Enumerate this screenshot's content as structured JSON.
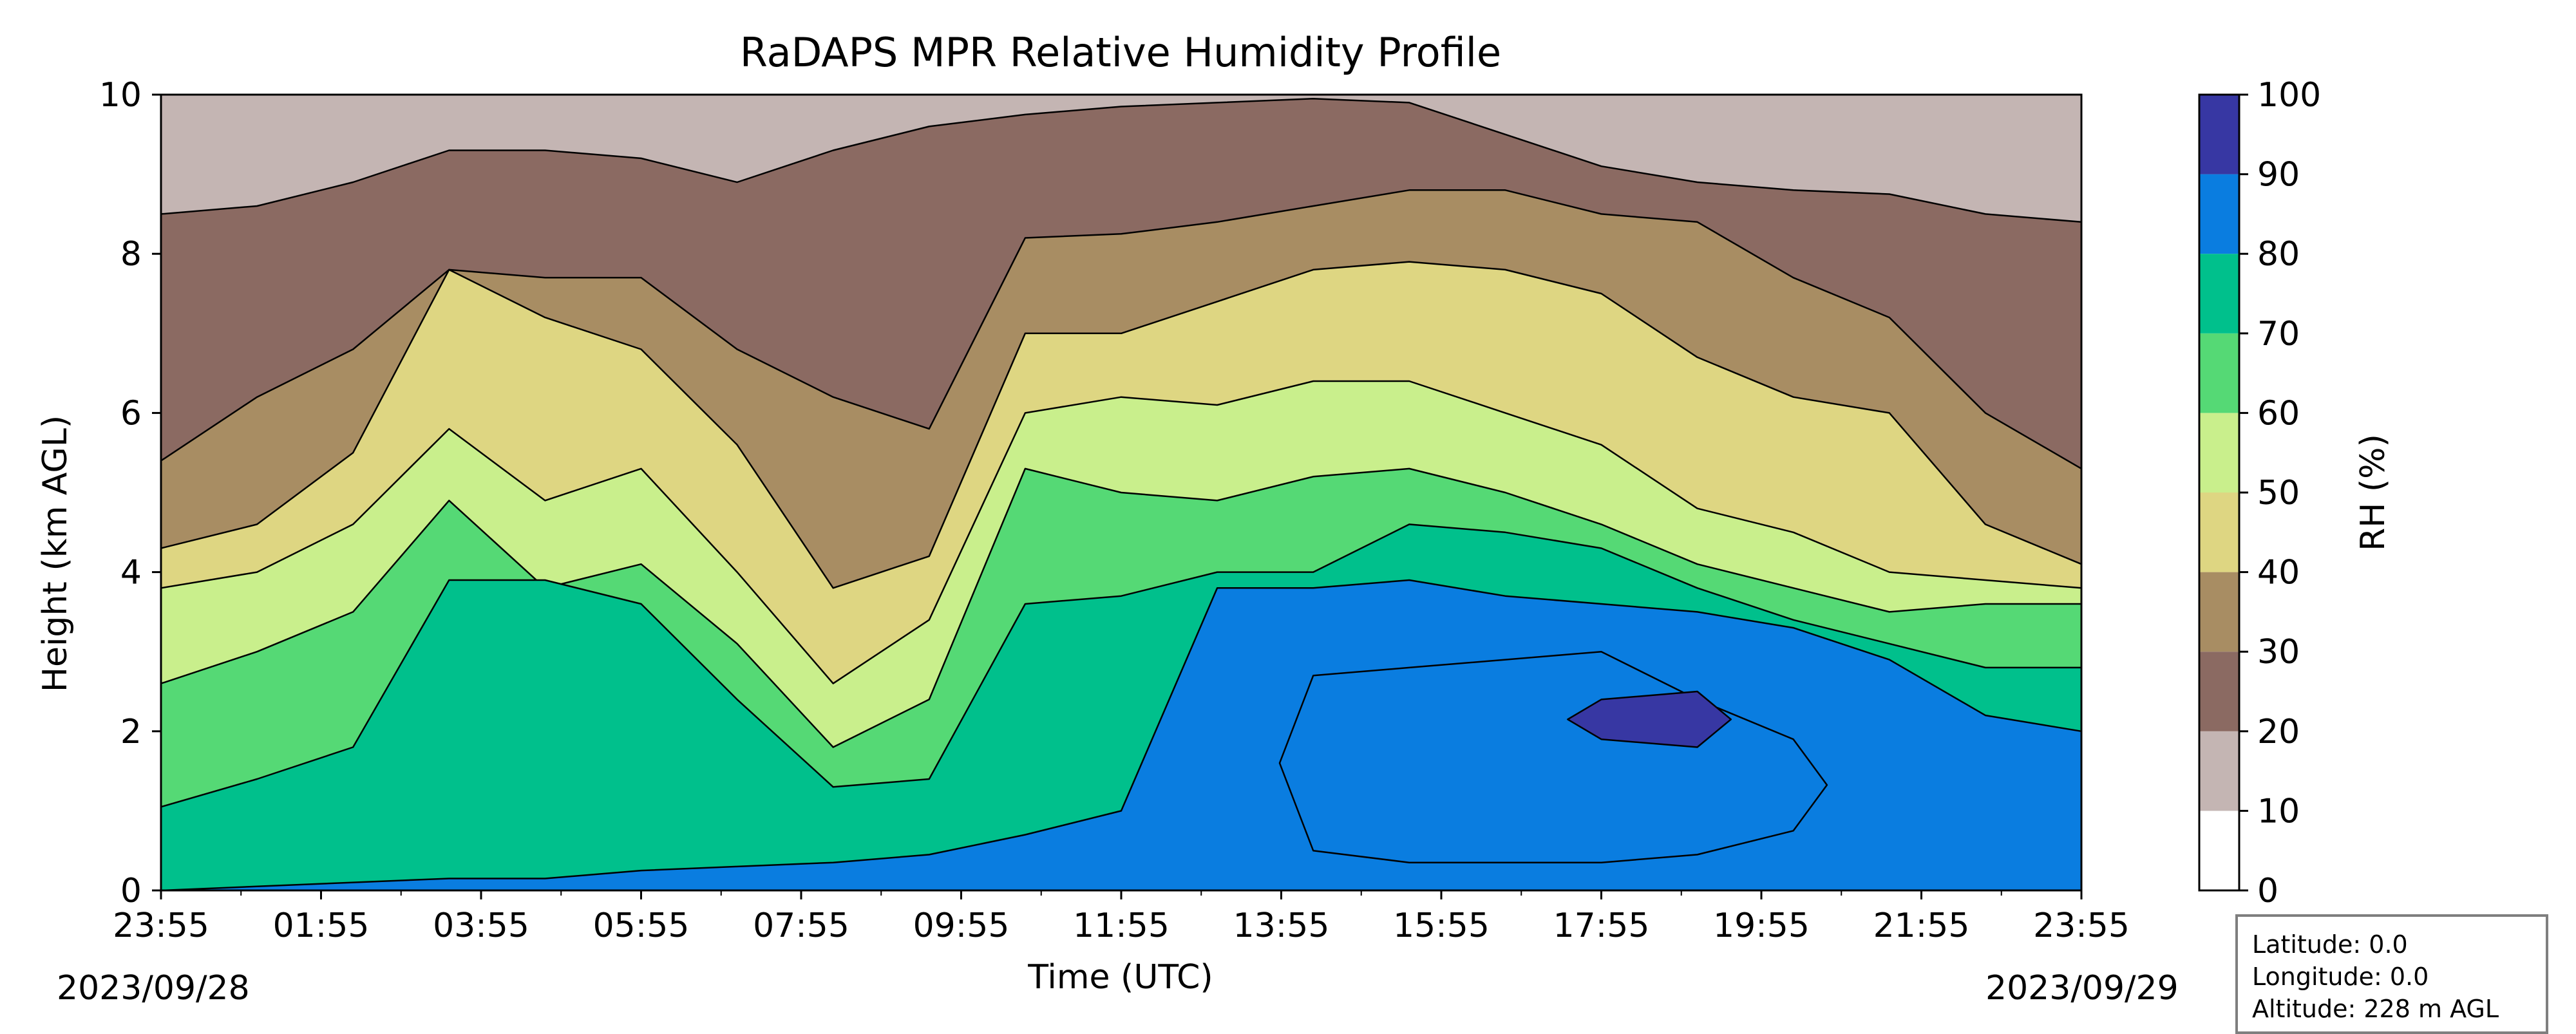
{
  "chart_data": {
    "type": "filled-contour",
    "title": "RaDAPS MPR Relative Humidity Profile",
    "xlabel": "Time (UTC)",
    "ylabel": "Height (km AGL)",
    "ylim": [
      0,
      10
    ],
    "x_tick_labels": [
      "23:55",
      "01:55",
      "03:55",
      "05:55",
      "07:55",
      "09:55",
      "11:55",
      "13:55",
      "15:55",
      "17:55",
      "19:55",
      "21:55",
      "23:55"
    ],
    "y_ticks": [
      0,
      2,
      4,
      6,
      8,
      10
    ],
    "start_date": "2023/09/28",
    "end_date": "2023/09/29",
    "colorbar": {
      "label": "RH (%)",
      "levels": [
        0,
        10,
        20,
        30,
        40,
        50,
        60,
        70,
        80,
        90,
        100
      ],
      "colors": [
        "#ffffff",
        "#c4b5b3",
        "#8b6a62",
        "#a88d63",
        "#ded682",
        "#c9ef8c",
        "#55d975",
        "#00c08c",
        "#0a7de0",
        "#3737a3"
      ]
    },
    "contour_heights_km": {
      "rh10": [
        8.5,
        8.6,
        8.9,
        9.3,
        9.3,
        9.2,
        8.9,
        9.3,
        9.6,
        9.75,
        9.85,
        9.9,
        9.95,
        9.9,
        9.5,
        9.1,
        8.9,
        8.8,
        8.75,
        8.5,
        8.4
      ],
      "rh20": [
        5.4,
        6.2,
        6.8,
        7.8,
        7.7,
        7.7,
        6.8,
        6.2,
        5.8,
        8.2,
        8.25,
        8.4,
        8.6,
        8.8,
        8.8,
        8.5,
        8.4,
        7.7,
        7.2,
        6.0,
        5.3
      ],
      "rh30": [
        4.3,
        4.6,
        5.5,
        7.8,
        7.2,
        6.8,
        5.6,
        3.8,
        4.2,
        7.0,
        7.0,
        7.4,
        7.8,
        7.9,
        7.8,
        7.5,
        6.7,
        6.2,
        6.0,
        4.6,
        4.1
      ],
      "rh40": [
        3.8,
        4.0,
        4.6,
        5.8,
        4.9,
        5.3,
        4.0,
        2.6,
        3.4,
        6.0,
        6.2,
        6.1,
        6.4,
        6.4,
        6.0,
        5.6,
        4.8,
        4.5,
        4.0,
        3.9,
        3.8
      ],
      "rh50": [
        2.6,
        3.0,
        3.5,
        4.9,
        3.8,
        4.1,
        3.1,
        1.8,
        2.4,
        5.3,
        5.0,
        4.9,
        5.2,
        5.3,
        5.0,
        4.6,
        4.1,
        3.8,
        3.5,
        3.6,
        3.6
      ],
      "rh60": [
        1.05,
        1.4,
        1.8,
        3.9,
        3.9,
        3.6,
        2.4,
        1.3,
        1.4,
        3.6,
        3.7,
        4.0,
        4.0,
        4.6,
        4.5,
        4.3,
        3.8,
        3.4,
        3.1,
        2.8,
        2.8
      ],
      "rh70": [
        0.0,
        0.05,
        0.1,
        0.15,
        0.15,
        0.25,
        0.3,
        0.35,
        0.45,
        0.7,
        1.0,
        3.8,
        3.8,
        3.9,
        3.7,
        3.6,
        3.5,
        3.3,
        2.9,
        2.2,
        2.0
      ],
      "rh80_band": [
        [
          0,
          0
        ],
        [
          0,
          0
        ],
        [
          0,
          0
        ],
        [
          0,
          0
        ],
        [
          0,
          0
        ],
        [
          0,
          0
        ],
        [
          0,
          0
        ],
        [
          0,
          0
        ],
        [
          0,
          0
        ],
        [
          0,
          0
        ],
        [
          0,
          0
        ],
        [
          0,
          0
        ],
        [
          0.5,
          2.7
        ],
        [
          0.35,
          2.8
        ],
        [
          0.35,
          2.9
        ],
        [
          0.35,
          3.0
        ],
        [
          0.45,
          2.4
        ],
        [
          0.75,
          1.9
        ],
        [
          0,
          0
        ],
        [
          0,
          0
        ],
        [
          0,
          0
        ]
      ],
      "rh90_band": [
        [
          0,
          0
        ],
        [
          0,
          0
        ],
        [
          0,
          0
        ],
        [
          0,
          0
        ],
        [
          0,
          0
        ],
        [
          0,
          0
        ],
        [
          0,
          0
        ],
        [
          0,
          0
        ],
        [
          0,
          0
        ],
        [
          0,
          0
        ],
        [
          0,
          0
        ],
        [
          0,
          0
        ],
        [
          0,
          0
        ],
        [
          0,
          0
        ],
        [
          0,
          0
        ],
        [
          1.9,
          2.4
        ],
        [
          1.8,
          2.5
        ],
        [
          0,
          0
        ],
        [
          0,
          0
        ],
        [
          0,
          0
        ],
        [
          0,
          0
        ]
      ]
    }
  },
  "info_box": {
    "latitude": "Latitude: 0.0",
    "longitude": "Longitude: 0.0",
    "altitude": "Altitude: 228 m AGL"
  }
}
